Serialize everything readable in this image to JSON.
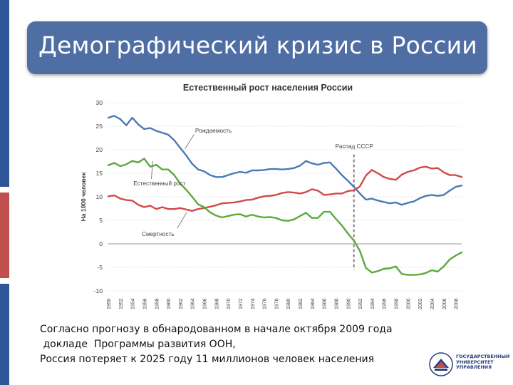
{
  "slide": {
    "title": "Демографический кризис в России"
  },
  "chart_data": {
    "type": "line",
    "title": "Естественный рост населения России",
    "ylabel": "На 1000 человек",
    "xlabel": "",
    "ylim": [
      -10,
      30
    ],
    "y_ticks": [
      30,
      25,
      20,
      15,
      10,
      5,
      0,
      -5,
      -10
    ],
    "x_start": 1950,
    "x_end": 2009,
    "x_tick_labels": [
      "1950",
      "1952",
      "1954",
      "1956",
      "1958",
      "1960",
      "1962",
      "1964",
      "1966",
      "1968",
      "1970",
      "1972",
      "1974",
      "1976",
      "1978",
      "1980",
      "1982",
      "1984",
      "1986",
      "1988",
      "1990",
      "1992",
      "1994",
      "1996",
      "1998",
      "2000",
      "2002",
      "2004",
      "2006",
      "2008"
    ],
    "grid": true,
    "annotation": {
      "label": "Распад СССР",
      "x": 1991
    },
    "series": [
      {
        "name": "Рождаемость",
        "color": "#4a7ab5",
        "x": [
          1950,
          1951,
          1952,
          1953,
          1954,
          1955,
          1956,
          1957,
          1958,
          1959,
          1960,
          1961,
          1962,
          1963,
          1964,
          1965,
          1966,
          1967,
          1968,
          1969,
          1970,
          1971,
          1972,
          1973,
          1974,
          1975,
          1976,
          1977,
          1978,
          1979,
          1980,
          1981,
          1982,
          1983,
          1984,
          1985,
          1986,
          1987,
          1988,
          1989,
          1990,
          1991,
          1992,
          1993,
          1994,
          1995,
          1996,
          1997,
          1998,
          1999,
          2000,
          2001,
          2002,
          2003,
          2004,
          2005,
          2006,
          2007,
          2008,
          2009
        ],
        "values": [
          26.8,
          27.2,
          26.5,
          25.2,
          26.8,
          25.4,
          24.4,
          24.6,
          24.0,
          23.6,
          23.2,
          22.0,
          20.4,
          18.8,
          17.0,
          15.8,
          15.4,
          14.6,
          14.2,
          14.2,
          14.6,
          15.0,
          15.3,
          15.1,
          15.6,
          15.6,
          15.7,
          15.9,
          15.9,
          15.8,
          15.9,
          16.1,
          16.6,
          17.6,
          17.1,
          16.8,
          17.2,
          17.3,
          16.0,
          14.6,
          13.4,
          12.1,
          10.7,
          9.4,
          9.6,
          9.2,
          8.9,
          8.6,
          8.8,
          8.3,
          8.7,
          9.0,
          9.7,
          10.2,
          10.4,
          10.2,
          10.4,
          11.3,
          12.1,
          12.4
        ]
      },
      {
        "name": "Смертность",
        "color": "#d04a4a",
        "x": [
          1950,
          1951,
          1952,
          1953,
          1954,
          1955,
          1956,
          1957,
          1958,
          1959,
          1960,
          1961,
          1962,
          1963,
          1964,
          1965,
          1966,
          1967,
          1968,
          1969,
          1970,
          1971,
          1972,
          1973,
          1974,
          1975,
          1976,
          1977,
          1978,
          1979,
          1980,
          1981,
          1982,
          1983,
          1984,
          1985,
          1986,
          1987,
          1988,
          1989,
          1990,
          1991,
          1992,
          1993,
          1994,
          1995,
          1996,
          1997,
          1998,
          1999,
          2000,
          2001,
          2002,
          2003,
          2004,
          2005,
          2006,
          2007,
          2008,
          2009
        ],
        "values": [
          10.1,
          10.3,
          9.6,
          9.3,
          9.2,
          8.3,
          7.8,
          8.1,
          7.4,
          7.8,
          7.4,
          7.4,
          7.6,
          7.3,
          7.0,
          7.4,
          7.6,
          7.9,
          8.2,
          8.6,
          8.7,
          8.8,
          9.0,
          9.3,
          9.4,
          9.8,
          10.1,
          10.2,
          10.4,
          10.8,
          11.0,
          10.9,
          10.7,
          11.0,
          11.6,
          11.3,
          10.4,
          10.5,
          10.7,
          10.7,
          11.2,
          11.4,
          12.2,
          14.5,
          15.7,
          15.0,
          14.2,
          13.8,
          13.6,
          14.7,
          15.3,
          15.6,
          16.2,
          16.4,
          16.0,
          16.1,
          15.2,
          14.6,
          14.6,
          14.2
        ]
      },
      {
        "name": "Естественный рост",
        "color": "#5aaa3c",
        "x": [
          1950,
          1951,
          1952,
          1953,
          1954,
          1955,
          1956,
          1957,
          1958,
          1959,
          1960,
          1961,
          1962,
          1963,
          1964,
          1965,
          1966,
          1967,
          1968,
          1969,
          1970,
          1971,
          1972,
          1973,
          1974,
          1975,
          1976,
          1977,
          1978,
          1979,
          1980,
          1981,
          1982,
          1983,
          1984,
          1985,
          1986,
          1987,
          1988,
          1989,
          1990,
          1991,
          1992,
          1993,
          1994,
          1995,
          1996,
          1997,
          1998,
          1999,
          2000,
          2001,
          2002,
          2003,
          2004,
          2005,
          2006,
          2007,
          2008,
          2009
        ],
        "values": [
          16.7,
          17.2,
          16.5,
          16.9,
          17.6,
          17.3,
          18.1,
          16.4,
          16.8,
          15.8,
          15.8,
          14.6,
          12.8,
          11.5,
          10.0,
          8.4,
          7.8,
          6.7,
          6.0,
          5.6,
          5.9,
          6.2,
          6.3,
          5.8,
          6.2,
          5.8,
          5.6,
          5.7,
          5.5,
          5.0,
          4.9,
          5.2,
          5.9,
          6.6,
          5.5,
          5.5,
          6.8,
          6.8,
          5.3,
          3.9,
          2.2,
          0.7,
          -1.5,
          -5.1,
          -6.1,
          -5.8,
          -5.3,
          -5.2,
          -4.8,
          -6.4,
          -6.6,
          -6.6,
          -6.5,
          -6.2,
          -5.6,
          -5.9,
          -4.8,
          -3.3,
          -2.5,
          -1.8
        ]
      }
    ],
    "series_labels": [
      {
        "text": "Рождаемость",
        "series": "Рождаемость"
      },
      {
        "text": "Естественный рост",
        "series": "Естественный рост"
      },
      {
        "text": "Смертность",
        "series": "Смертность"
      }
    ]
  },
  "footer": {
    "line1": "Согласно прогнозу в обнародованном в начале октября 2009 года",
    "line2": " докладе  Программы развития ООН,",
    "line3": "Россия потеряет к 2025 году 11 миллионов человек населения"
  },
  "logo": {
    "line1": "ГОСУДАРСТВЕННЫЙ",
    "line2": "УНИВЕРСИТЕТ",
    "line3": "УПРАВЛЕНИЯ"
  },
  "colors": {
    "title_bg": "#4f6ea3",
    "stripe": [
      "#c0504d",
      "#2e5597",
      "#c0504d",
      "#2e5597"
    ]
  }
}
